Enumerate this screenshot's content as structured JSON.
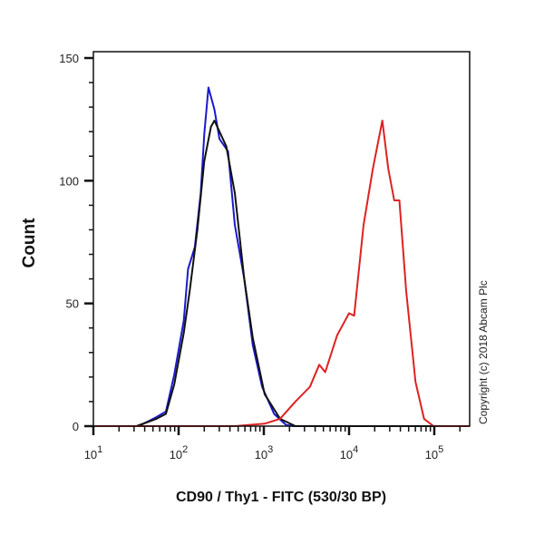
{
  "chart_data": {
    "type": "line",
    "title": "",
    "xlabel": "CD90 / Thy1 - FITC (530/30 BP)",
    "ylabel": "Count",
    "x_scale": "log",
    "xlim": [
      10,
      260000
    ],
    "ylim": [
      0,
      150
    ],
    "x_ticks": [
      10,
      100,
      1000,
      10000,
      100000
    ],
    "x_tick_labels": [
      {
        "base": "10",
        "exp": "1"
      },
      {
        "base": "10",
        "exp": "2"
      },
      {
        "base": "10",
        "exp": "3"
      },
      {
        "base": "10",
        "exp": "4"
      },
      {
        "base": "10",
        "exp": "5"
      }
    ],
    "y_ticks": [
      0,
      50,
      100,
      150
    ],
    "y_tick_labels": [
      "0",
      "50",
      "100",
      "150"
    ],
    "grid": false,
    "annotation": "Copyright (c) 2018 Abcam Plc",
    "series": [
      {
        "color": "#1a1acc",
        "x": [
          10,
          34,
          55,
          71,
          89,
          115,
          129,
          155,
          182,
          200,
          224,
          263,
          302,
          380,
          457,
          589,
          741,
          955,
          1318,
          1820,
          2239,
          260000
        ],
        "y": [
          0,
          0,
          3.7,
          6,
          21,
          43,
          64,
          73,
          95,
          119,
          138,
          129,
          117,
          112,
          82,
          60,
          33,
          16,
          5,
          0.5,
          0,
          0
        ]
      },
      {
        "color": "#111111",
        "x": [
          10,
          32,
          55,
          71,
          89,
          115,
          135,
          166,
          200,
          240,
          263,
          363,
          457,
          589,
          741,
          1023,
          1549,
          2344,
          260000
        ],
        "y": [
          0,
          0,
          3,
          5,
          17,
          38,
          55,
          80,
          108,
          122,
          124.5,
          114,
          95,
          60,
          36,
          13,
          3,
          0,
          0
        ]
      },
      {
        "color": "#dd2222",
        "x": [
          10,
          457,
          1023,
          1549,
          2344,
          3467,
          4467,
          5248,
          7244,
          10000,
          11482,
          14791,
          19055,
          24547,
          28840,
          33884,
          38905,
          46774,
          60256,
          75858,
          97724,
          260000
        ],
        "y": [
          0,
          0,
          1,
          3,
          10,
          16,
          25,
          22,
          37,
          46,
          45,
          82,
          105,
          124.5,
          105,
          92,
          92,
          55,
          18,
          3,
          0,
          0
        ]
      }
    ]
  }
}
